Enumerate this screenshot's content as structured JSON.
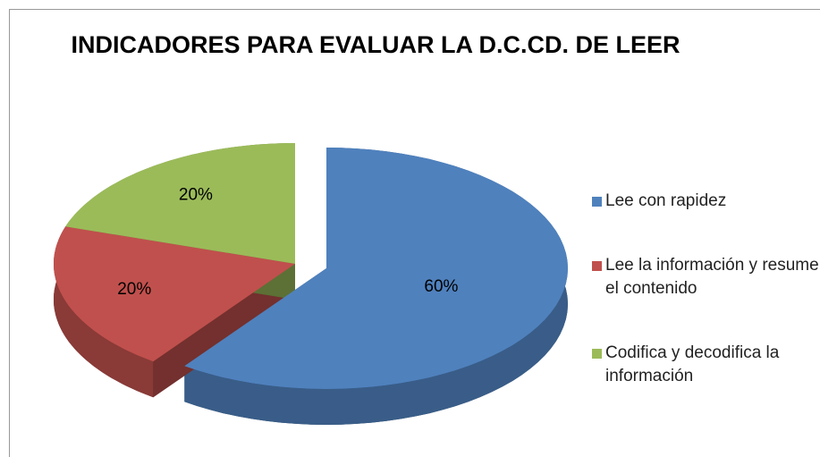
{
  "chart_data": {
    "type": "pie",
    "title": "INDICADORES PARA EVALUAR LA D.C.CD. DE LEER",
    "categories": [
      "Lee con rapidez",
      "Lee la información y resume el contenido",
      "Codifica y decodifica la información"
    ],
    "values": [
      60,
      20,
      20
    ],
    "value_labels": [
      "60%",
      "20%",
      "20%"
    ],
    "colors": [
      "#4f81bd",
      "#c0504d",
      "#9bbb59"
    ],
    "legend": "right"
  }
}
